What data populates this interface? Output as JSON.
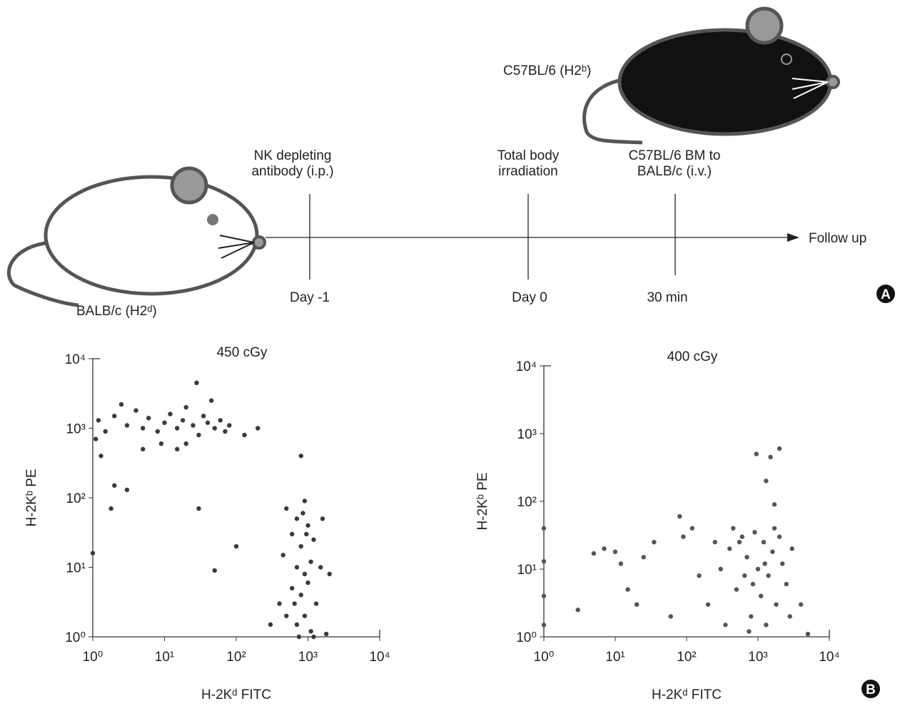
{
  "diagram": {
    "recipient": "BALB/c (H2ᵈ)",
    "donor": "C57BL/6 (H2ᵇ)",
    "steps": [
      {
        "event": "NK depleting antibody (i.p.)",
        "time": "Day -1"
      },
      {
        "event": "Total body irradiation",
        "time": "Day 0"
      },
      {
        "event": "C57BL/6 BM to BALB/c (i.v.)",
        "time": "30 min"
      }
    ],
    "end": "Follow up",
    "panel_a": "A",
    "panel_b": "B"
  },
  "chart_data": [
    {
      "type": "scatter",
      "title": "450 cGy",
      "x_label": "H-2Kᵈ FITC",
      "y_label": "H-2Kᵇ PE",
      "log_x": true,
      "log_y": true,
      "color": "#3a3a3a",
      "xlim": [
        1,
        10000
      ],
      "ylim": [
        1,
        10000
      ],
      "xticks": [
        {
          "value": 1,
          "label": "10⁰"
        },
        {
          "value": 10,
          "label": "10¹"
        },
        {
          "value": 100,
          "label": "10²"
        },
        {
          "value": 1000,
          "label": "10³"
        },
        {
          "value": 10000,
          "label": "10⁴"
        }
      ],
      "yticks": [
        {
          "value": 1,
          "label": "10⁰"
        },
        {
          "value": 10,
          "label": "10¹"
        },
        {
          "value": 100,
          "label": "10²"
        },
        {
          "value": 1000,
          "label": "10³"
        },
        {
          "value": 10000,
          "label": "10⁴"
        }
      ],
      "x": [
        1.2,
        1.5,
        2,
        3,
        4,
        5,
        6,
        8,
        10,
        12,
        15,
        18,
        20,
        25,
        30,
        35,
        40,
        50,
        60,
        70,
        1.1,
        2.5,
        9,
        20,
        45,
        80,
        130,
        200,
        28,
        2,
        1.8,
        30,
        100,
        50,
        1,
        15,
        5,
        1.3,
        3,
        800,
        500,
        700,
        900,
        1000,
        600,
        800,
        1200,
        450,
        700,
        900,
        1100,
        1500,
        600,
        800,
        1000,
        1300,
        500,
        700,
        900,
        1100,
        1800,
        400,
        2000,
        300,
        750,
        950,
        850,
        1600,
        650,
        1200
      ],
      "y": [
        1300,
        900,
        1500,
        1100,
        1800,
        1000,
        1400,
        900,
        1200,
        1600,
        1000,
        1300,
        2000,
        1100,
        800,
        1500,
        1200,
        1000,
        1300,
        900,
        700,
        2200,
        600,
        600,
        2500,
        1100,
        800,
        1000,
        4500,
        150,
        70,
        70,
        20,
        9,
        16,
        500,
        500,
        400,
        130,
        400,
        70,
        50,
        90,
        40,
        30,
        20,
        25,
        15,
        10,
        8,
        12,
        10,
        5,
        4,
        6,
        3,
        2,
        1.5,
        2,
        1.2,
        1.1,
        3,
        8,
        1.5,
        1,
        30,
        60,
        50,
        3,
        1
      ]
    },
    {
      "type": "scatter",
      "title": "400 cGy",
      "x_label": "H-2Kᵈ FITC",
      "y_label": "H-2Kᵇ PE",
      "log_x": true,
      "log_y": true,
      "color": "#555555",
      "xlim": [
        1,
        10000
      ],
      "ylim": [
        1,
        10000
      ],
      "xticks": [
        {
          "value": 1,
          "label": "10⁰"
        },
        {
          "value": 10,
          "label": "10¹"
        },
        {
          "value": 100,
          "label": "10²"
        },
        {
          "value": 1000,
          "label": "10³"
        },
        {
          "value": 10000,
          "label": "10⁴"
        }
      ],
      "yticks": [
        {
          "value": 1,
          "label": "10⁰"
        },
        {
          "value": 10,
          "label": "10¹"
        },
        {
          "value": 100,
          "label": "10²"
        },
        {
          "value": 1000,
          "label": "10³"
        },
        {
          "value": 10000,
          "label": "10⁴"
        }
      ],
      "x": [
        1,
        1,
        1,
        1,
        3,
        5,
        7,
        10,
        12,
        15,
        20,
        25,
        35,
        60,
        80,
        90,
        120,
        150,
        200,
        250,
        300,
        400,
        500,
        600,
        700,
        800,
        900,
        1000,
        1100,
        1200,
        1400,
        1600,
        1800,
        2000,
        2200,
        2500,
        3000,
        350,
        450,
        650,
        750,
        1300,
        1700,
        2800,
        4000,
        950,
        1300,
        1700,
        2000,
        1500,
        5000,
        550,
        850,
        1250
      ],
      "y": [
        40,
        13,
        4,
        1.5,
        2.5,
        17,
        20,
        18,
        12,
        5,
        3,
        15,
        25,
        2,
        60,
        30,
        40,
        8,
        3,
        25,
        10,
        20,
        5,
        30,
        15,
        2,
        35,
        10,
        4,
        25,
        8,
        18,
        3,
        30,
        12,
        6,
        20,
        1.5,
        40,
        8,
        1.2,
        1.5,
        40,
        2,
        3,
        500,
        200,
        90,
        600,
        450,
        1.1,
        25,
        6,
        12
      ]
    }
  ]
}
